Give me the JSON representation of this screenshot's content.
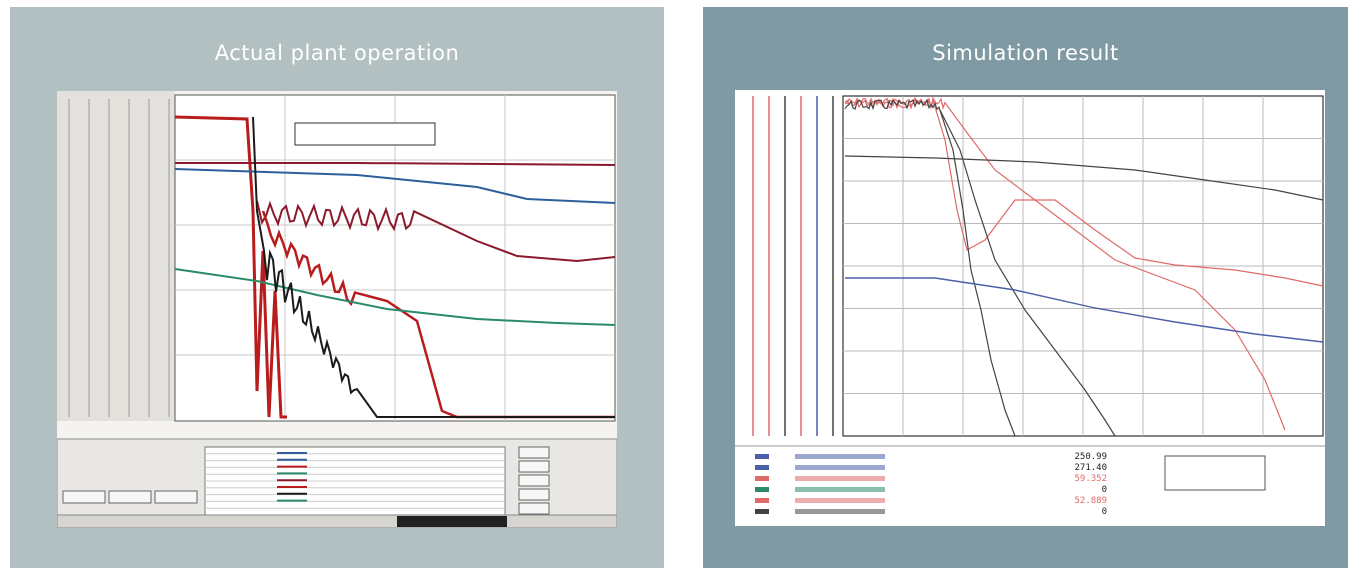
{
  "colors": {
    "left_bg": "#b3c0c2",
    "right_bg": "#7f9aa2",
    "title_text": "#ffffff",
    "trend_red": "#b81c1c",
    "trend_dark_red": "#8a1a2c",
    "trend_blue": "#2f5f9a",
    "trend_green": "#2a8a6a",
    "trend_black": "#1a1a1a",
    "sim_red": "#e06a6a",
    "sim_blue": "#4a5fa8",
    "sim_dark": "#444444"
  },
  "left_panel": {
    "title": "Actual plant operation"
  },
  "right_panel": {
    "title": "Simulation result",
    "footer_values": [
      "250.99",
      "271.40",
      "59.352",
      "0",
      "52.889",
      "0"
    ]
  },
  "chart_data": [
    {
      "type": "line",
      "panel": "Actual plant operation",
      "grid": true
    },
    {
      "type": "line",
      "panel": "Simulation result",
      "grid": true
    }
  ]
}
